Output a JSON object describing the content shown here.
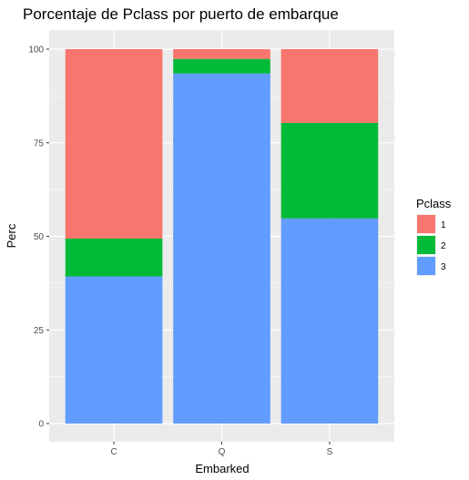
{
  "chart_data": {
    "type": "bar",
    "stacked": true,
    "title": "Porcentaje de Pclass por puerto de embarque",
    "xlabel": "Embarked",
    "ylabel": "Perc",
    "categories": [
      "C",
      "Q",
      "S"
    ],
    "ylim": [
      0,
      100
    ],
    "yticks": [
      0,
      25,
      50,
      75,
      100
    ],
    "grid": true,
    "legend": {
      "title": "Pclass",
      "position": "right"
    },
    "series": [
      {
        "name": "3",
        "color": "#619CFF",
        "values": [
          39.3,
          93.5,
          54.8
        ]
      },
      {
        "name": "2",
        "color": "#00BA38",
        "values": [
          10.1,
          3.9,
          25.5
        ]
      },
      {
        "name": "1",
        "color": "#F8766D",
        "values": [
          50.6,
          2.6,
          19.7
        ]
      }
    ],
    "legend_order": [
      "1",
      "2",
      "3"
    ]
  }
}
